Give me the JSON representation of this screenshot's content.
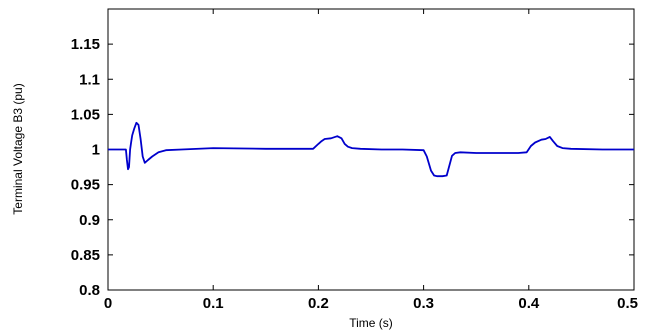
{
  "chart_data": {
    "type": "line",
    "title": "",
    "xlabel": "Time (s)",
    "ylabel": "Terminal Voltage B3 (pu)",
    "xlim": [
      0,
      0.5
    ],
    "ylim": [
      0.8,
      1.2
    ],
    "xticks": [
      0,
      0.1,
      0.2,
      0.3,
      0.4,
      0.5
    ],
    "xtick_labels": [
      "0",
      "0.1",
      "0.2",
      "0.3",
      "0.4",
      "0.5"
    ],
    "yticks": [
      0.8,
      0.85,
      0.9,
      0.95,
      1.0,
      1.05,
      1.1,
      1.15
    ],
    "ytick_labels": [
      "0.8",
      "0.85",
      "0.9",
      "0.95",
      "1",
      "1.05",
      "1.1",
      "1.15"
    ],
    "grid": false,
    "line_color": "#0000cc",
    "series": [
      {
        "x": [
          0,
          0.017,
          0.018,
          0.019,
          0.02,
          0.021,
          0.022,
          0.023,
          0.025,
          0.027,
          0.029,
          0.031,
          0.033,
          0.035,
          0.038,
          0.042,
          0.048,
          0.055,
          0.07,
          0.1,
          0.15,
          0.195,
          0.2,
          0.203,
          0.206,
          0.212,
          0.218,
          0.222,
          0.225,
          0.228,
          0.232,
          0.24,
          0.26,
          0.28,
          0.3,
          0.303,
          0.307,
          0.31,
          0.313,
          0.318,
          0.322,
          0.325,
          0.327,
          0.33,
          0.335,
          0.35,
          0.39,
          0.398,
          0.402,
          0.406,
          0.412,
          0.416,
          0.42,
          0.423,
          0.427,
          0.432,
          0.44,
          0.47,
          0.5
        ],
        "y": [
          1.0,
          1.0,
          0.985,
          0.972,
          0.975,
          1.0,
          1.01,
          1.02,
          1.03,
          1.038,
          1.035,
          1.015,
          0.99,
          0.981,
          0.985,
          0.99,
          0.996,
          0.999,
          1.0,
          1.002,
          1.001,
          1.001,
          1.008,
          1.012,
          1.015,
          1.016,
          1.019,
          1.016,
          1.008,
          1.004,
          1.002,
          1.001,
          1.0,
          1.0,
          0.999,
          0.99,
          0.97,
          0.963,
          0.962,
          0.962,
          0.963,
          0.98,
          0.991,
          0.995,
          0.996,
          0.995,
          0.995,
          0.996,
          1.005,
          1.01,
          1.014,
          1.015,
          1.018,
          1.012,
          1.005,
          1.002,
          1.001,
          1.0,
          1.0
        ]
      }
    ]
  }
}
